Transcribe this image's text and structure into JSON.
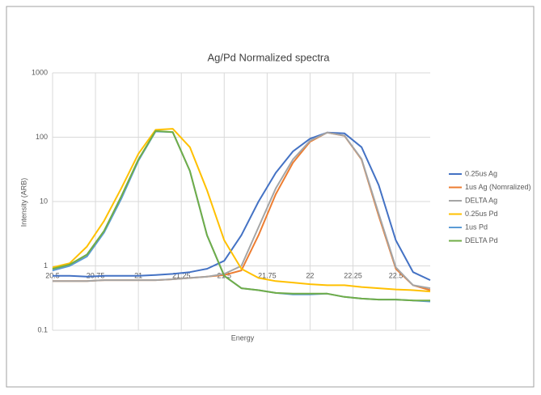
{
  "chart_data": {
    "type": "line",
    "title": "Ag/Pd Normalized spectra",
    "xlabel": "Energy",
    "ylabel": "Intensity (ARB)",
    "x": [
      20.5,
      20.6,
      20.7,
      20.8,
      20.9,
      21.0,
      21.1,
      21.2,
      21.3,
      21.4,
      21.5,
      21.6,
      21.7,
      21.8,
      21.9,
      22.0,
      22.1,
      22.2,
      22.3,
      22.4,
      22.5,
      22.6,
      22.7
    ],
    "xlim": [
      20.5,
      22.7
    ],
    "xticks": [
      20.5,
      20.75,
      21,
      21.25,
      21.5,
      21.75,
      22,
      22.25,
      22.5
    ],
    "ylim": [
      0.1,
      1000
    ],
    "yticks": [
      0.1,
      1,
      10,
      100,
      1000
    ],
    "yscale": "log",
    "grid": true,
    "legend": "right",
    "series": [
      {
        "name": "0.25us Ag",
        "color": "#4472c4",
        "values": [
          0.7,
          0.7,
          0.68,
          0.7,
          0.7,
          0.7,
          0.72,
          0.75,
          0.8,
          0.9,
          1.2,
          3,
          10,
          28,
          60,
          95,
          118,
          115,
          70,
          18,
          2.5,
          0.8,
          0.6
        ]
      },
      {
        "name": "1us Ag (Nomralized)",
        "color": "#ed7d31",
        "values": [
          0.58,
          0.58,
          0.58,
          0.6,
          0.6,
          0.6,
          0.6,
          0.62,
          0.65,
          0.68,
          0.72,
          0.85,
          3,
          13,
          40,
          85,
          118,
          105,
          45,
          6,
          0.9,
          0.5,
          0.42
        ]
      },
      {
        "name": "DELTA Ag",
        "color": "#a5a5a5",
        "values": [
          0.58,
          0.58,
          0.58,
          0.6,
          0.6,
          0.6,
          0.6,
          0.62,
          0.65,
          0.68,
          0.75,
          1.0,
          4,
          16,
          45,
          88,
          118,
          106,
          46,
          6.5,
          0.95,
          0.5,
          0.45
        ]
      },
      {
        "name": "0.25us Pd",
        "color": "#ffc000",
        "values": [
          0.95,
          1.1,
          2.0,
          5,
          16,
          55,
          130,
          135,
          70,
          15,
          2.5,
          0.9,
          0.65,
          0.58,
          0.55,
          0.52,
          0.5,
          0.5,
          0.47,
          0.45,
          0.43,
          0.42,
          0.4
        ]
      },
      {
        "name": "1us Pd",
        "color": "#5b9bd5",
        "values": [
          0.85,
          1.0,
          1.4,
          3.3,
          11,
          43,
          123,
          120,
          30,
          3,
          0.7,
          0.45,
          0.42,
          0.38,
          0.36,
          0.36,
          0.37,
          0.33,
          0.31,
          0.3,
          0.3,
          0.29,
          0.28
        ]
      },
      {
        "name": "DELTA Pd",
        "color": "#70ad47",
        "values": [
          0.9,
          1.05,
          1.5,
          3.5,
          12,
          45,
          125,
          120,
          30,
          3,
          0.7,
          0.45,
          0.42,
          0.38,
          0.37,
          0.37,
          0.37,
          0.33,
          0.31,
          0.3,
          0.3,
          0.29,
          0.29
        ]
      }
    ]
  }
}
